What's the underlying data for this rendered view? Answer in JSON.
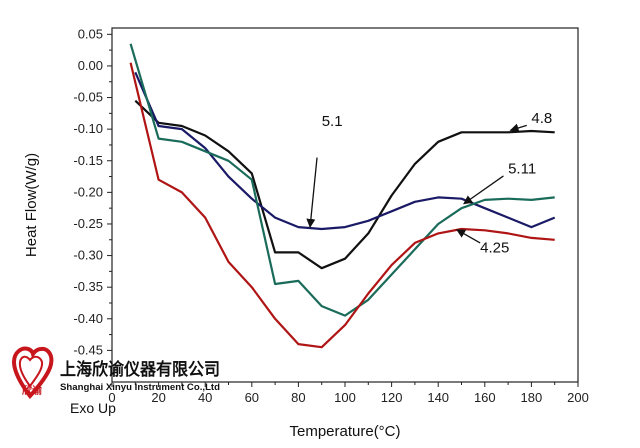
{
  "chart_data": {
    "type": "line",
    "xlabel": "Temperature(°C)",
    "ylabel": "Heat Flow(W/g)",
    "xlim": [
      0,
      200
    ],
    "ylim": [
      -0.5,
      0.06
    ],
    "x_ticks": [
      0,
      20,
      40,
      60,
      80,
      100,
      120,
      140,
      160,
      180,
      200
    ],
    "y_ticks": [
      0.05,
      0.0,
      -0.05,
      -0.1,
      -0.15,
      -0.2,
      -0.25,
      -0.3,
      -0.35,
      -0.4,
      -0.45
    ],
    "y_tick_labels": [
      "0.05",
      "0.00",
      "-0.05",
      "-0.10",
      "-0.15",
      "-0.20",
      "-0.25",
      "-0.30",
      "-0.35",
      "-0.40",
      "-0.45"
    ],
    "annotation": "Exo Up",
    "grid": false,
    "series": [
      {
        "name": "4.8",
        "color": "#111111",
        "label_pos": [
          180,
          -0.09
        ],
        "arrow_to": [
          171,
          -0.102
        ],
        "points": [
          [
            10,
            -0.055
          ],
          [
            20,
            -0.09
          ],
          [
            30,
            -0.095
          ],
          [
            40,
            -0.11
          ],
          [
            50,
            -0.135
          ],
          [
            60,
            -0.17
          ],
          [
            70,
            -0.295
          ],
          [
            80,
            -0.295
          ],
          [
            90,
            -0.32
          ],
          [
            100,
            -0.305
          ],
          [
            110,
            -0.265
          ],
          [
            120,
            -0.205
          ],
          [
            130,
            -0.155
          ],
          [
            140,
            -0.12
          ],
          [
            150,
            -0.105
          ],
          [
            160,
            -0.105
          ],
          [
            170,
            -0.105
          ],
          [
            180,
            -0.103
          ],
          [
            190,
            -0.105
          ]
        ]
      },
      {
        "name": "5.1",
        "color": "#1a1a66",
        "label_pos": [
          90,
          -0.095
        ],
        "arrow_from": [
          88,
          -0.145
        ],
        "arrow_to": [
          85,
          -0.255
        ],
        "points": [
          [
            10,
            -0.01
          ],
          [
            20,
            -0.095
          ],
          [
            30,
            -0.1
          ],
          [
            40,
            -0.13
          ],
          [
            50,
            -0.175
          ],
          [
            60,
            -0.21
          ],
          [
            70,
            -0.24
          ],
          [
            80,
            -0.255
          ],
          [
            90,
            -0.258
          ],
          [
            100,
            -0.255
          ],
          [
            110,
            -0.245
          ],
          [
            120,
            -0.23
          ],
          [
            130,
            -0.215
          ],
          [
            140,
            -0.208
          ],
          [
            150,
            -0.21
          ],
          [
            160,
            -0.225
          ],
          [
            170,
            -0.24
          ],
          [
            180,
            -0.255
          ],
          [
            190,
            -0.24
          ]
        ]
      },
      {
        "name": "5.11",
        "color": "#1a6b5a",
        "label_pos": [
          170,
          -0.17
        ],
        "arrow_to": [
          151,
          -0.218
        ],
        "points": [
          [
            8,
            0.035
          ],
          [
            20,
            -0.115
          ],
          [
            30,
            -0.12
          ],
          [
            40,
            -0.135
          ],
          [
            50,
            -0.15
          ],
          [
            60,
            -0.18
          ],
          [
            70,
            -0.345
          ],
          [
            80,
            -0.34
          ],
          [
            90,
            -0.38
          ],
          [
            100,
            -0.395
          ],
          [
            110,
            -0.37
          ],
          [
            120,
            -0.33
          ],
          [
            130,
            -0.29
          ],
          [
            140,
            -0.25
          ],
          [
            150,
            -0.225
          ],
          [
            160,
            -0.212
          ],
          [
            170,
            -0.21
          ],
          [
            180,
            -0.212
          ],
          [
            190,
            -0.208
          ]
        ]
      },
      {
        "name": "4.25",
        "color": "#b01515",
        "label_pos": [
          158,
          -0.295
        ],
        "arrow_from": [
          158,
          -0.28
        ],
        "arrow_to": [
          148,
          -0.259
        ],
        "points": [
          [
            8,
            0.005
          ],
          [
            20,
            -0.18
          ],
          [
            30,
            -0.2
          ],
          [
            40,
            -0.24
          ],
          [
            50,
            -0.31
          ],
          [
            60,
            -0.35
          ],
          [
            70,
            -0.4
          ],
          [
            80,
            -0.44
          ],
          [
            90,
            -0.445
          ],
          [
            100,
            -0.41
          ],
          [
            110,
            -0.36
          ],
          [
            120,
            -0.315
          ],
          [
            130,
            -0.28
          ],
          [
            140,
            -0.265
          ],
          [
            150,
            -0.258
          ],
          [
            160,
            -0.26
          ],
          [
            170,
            -0.265
          ],
          [
            180,
            -0.272
          ],
          [
            190,
            -0.275
          ]
        ]
      }
    ]
  },
  "logo": {
    "name_cn": "上海欣谕仪器有限公司",
    "name_en": "Shanghai Xinyu Instrument Co.,Ltd",
    "mark_text": "欣谕",
    "heart_color": "#c8161d"
  }
}
